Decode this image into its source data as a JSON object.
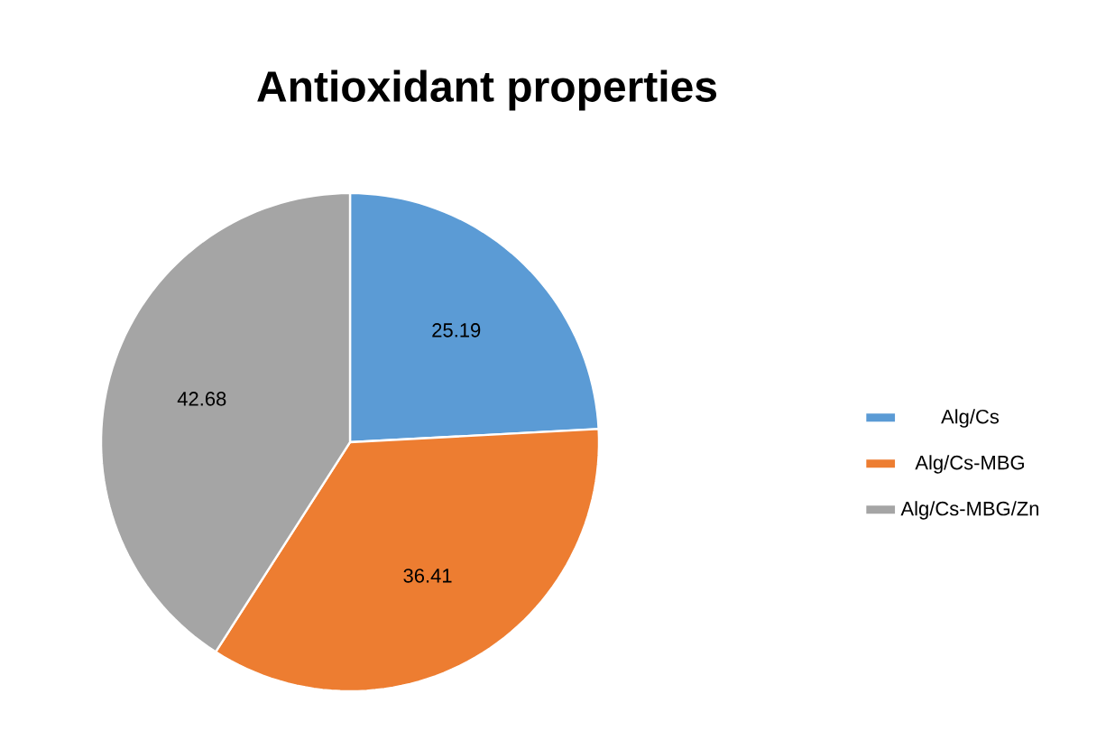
{
  "chart_data": {
    "type": "pie",
    "title": "Antioxidant properties",
    "categories": [
      "Alg/Cs",
      "Alg/Cs-MBG",
      "Alg/Cs-MBG/Zn"
    ],
    "values": [
      25.19,
      36.41,
      42.68
    ],
    "colors": [
      "#5b9bd5",
      "#ed7d31",
      "#a5a5a5"
    ],
    "data_labels": true,
    "legend": "right"
  }
}
